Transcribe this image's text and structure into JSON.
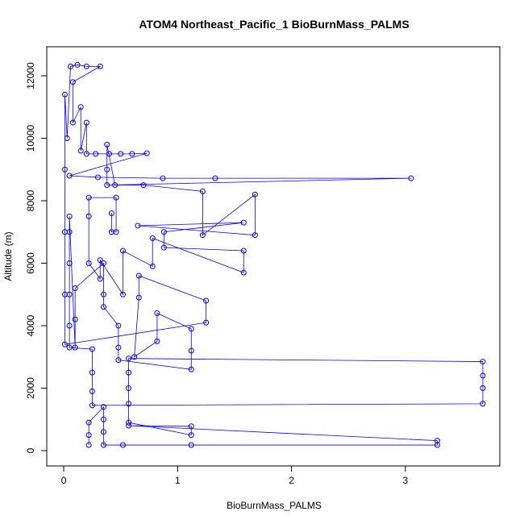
{
  "chart_data": {
    "type": "line",
    "title": "ATOM4 Northeast_Pacific_1 BioBurnMass_PALMS",
    "x_label": "BioBurnMass_PALMS",
    "y_label": "Altitude (m)",
    "color": "#0000ff",
    "markers": true,
    "grid": false,
    "xlim": [
      -0.149,
      3.829
    ],
    "ylim": [
      -490,
      12929
    ],
    "xticks": [
      0,
      1,
      2,
      3
    ],
    "yticks": [
      0,
      2000,
      4000,
      6000,
      8000,
      10000,
      12000
    ],
    "x": [
      0.22,
      0.22,
      0.22,
      0.35,
      0.35,
      0.35,
      0.35,
      0.52,
      1.12,
      3.28,
      3.28,
      0.57,
      1.12,
      1.12,
      0.57,
      0.57,
      0.57,
      0.57,
      0.57,
      3.68,
      3.68,
      3.68,
      3.68,
      0.25,
      0.25,
      0.25,
      0.25,
      0.05,
      0.05,
      0.05,
      0.05,
      0.05,
      0.05,
      0.1,
      0.1,
      0.1,
      0.35,
      0.35,
      0.35,
      0.48,
      0.48,
      0.48,
      1.12,
      1.12,
      1.12,
      0.82,
      0.82,
      0.62,
      0.66,
      0.66,
      1.25,
      1.25,
      0.01,
      0.01,
      0.01,
      0.01,
      0.01,
      0.03,
      0.06,
      0.12,
      0.2,
      0.32,
      0.08,
      0.08,
      0.15,
      0.15,
      0.2,
      0.2,
      0.28,
      0.4,
      0.5,
      0.6,
      0.73,
      0.05,
      0.3,
      0.87,
      1.33,
      3.05,
      0.38,
      0.38,
      0.38,
      0.45,
      0.7,
      1.22,
      1.22,
      1.68,
      1.68,
      0.65,
      1.58,
      0.88,
      0.88,
      1.58,
      1.58,
      0.78,
      0.78,
      0.52,
      0.52,
      0.32,
      0.32,
      0.22,
      0.22,
      0.22,
      0.46,
      0.46,
      0.42,
      0.42
    ],
    "values": [
      180,
      500,
      900,
      1400,
      1000,
      600,
      180,
      180,
      180,
      180,
      320,
      800,
      780,
      500,
      900,
      1500,
      2000,
      2500,
      2950,
      2850,
      2400,
      2000,
      1500,
      1450,
      1900,
      2500,
      3250,
      3300,
      4000,
      5000,
      6000,
      7000,
      7500,
      3300,
      4200,
      5200,
      6000,
      5000,
      4600,
      4000,
      3300,
      2900,
      2600,
      3200,
      3900,
      4400,
      3500,
      3000,
      4900,
      5600,
      4800,
      4100,
      3400,
      5000,
      7000,
      9000,
      11400,
      10000,
      12300,
      12350,
      12300,
      12300,
      11800,
      10500,
      11000,
      9600,
      10500,
      9500,
      9500,
      9500,
      9500,
      9500,
      9520,
      8800,
      8750,
      8720,
      8720,
      8720,
      8500,
      9000,
      9800,
      8500,
      8500,
      8300,
      6900,
      8200,
      6900,
      7200,
      7300,
      7000,
      6500,
      6400,
      5700,
      6800,
      5900,
      6400,
      5000,
      6100,
      5500,
      6000,
      7500,
      8100,
      8100,
      7000,
      7000,
      7600
    ]
  }
}
